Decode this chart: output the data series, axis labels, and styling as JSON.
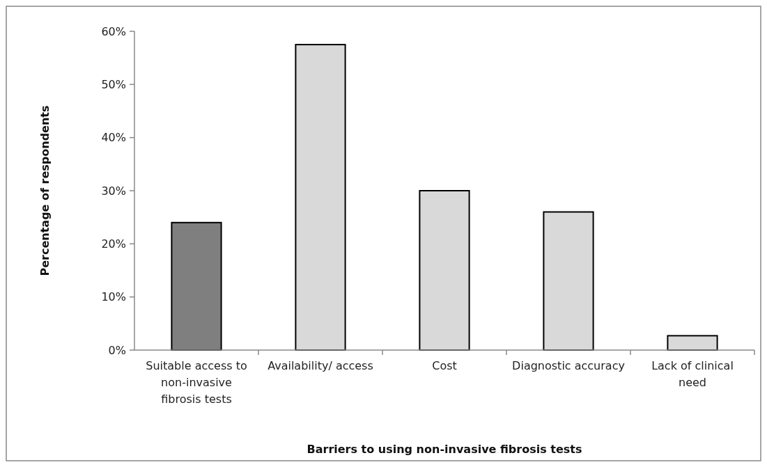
{
  "chart_data": {
    "type": "bar",
    "xlabel": "Barriers to using non-invasive fibrosis tests",
    "ylabel": "Percentage of respondents",
    "categories": [
      "Suitable access to non-invasive fibrosis tests",
      "Availability/ access",
      "Cost",
      "Diagnostic accuracy",
      "Lack of clinical need"
    ],
    "values": [
      24,
      57.5,
      30,
      26,
      2.7
    ],
    "colors": [
      "#7f7f7f",
      "#d9d9d9",
      "#d9d9d9",
      "#d9d9d9",
      "#d9d9d9"
    ],
    "ylim": [
      0,
      60
    ],
    "yticks": [
      {
        "value": 0,
        "label": "0%"
      },
      {
        "value": 10,
        "label": "10%"
      },
      {
        "value": 20,
        "label": "20%"
      },
      {
        "value": 30,
        "label": "30%"
      },
      {
        "value": 40,
        "label": "40%"
      },
      {
        "value": 50,
        "label": "50%"
      },
      {
        "value": 60,
        "label": "60%"
      }
    ],
    "grid": false
  }
}
